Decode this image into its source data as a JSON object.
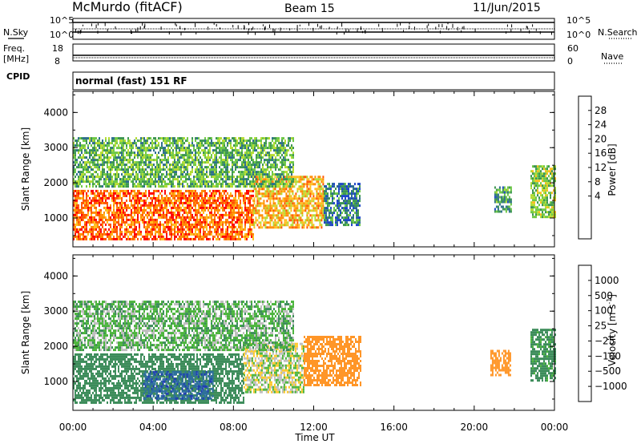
{
  "header": {
    "station": "McMurdo (fitACF)",
    "beam": "Beam 15",
    "date": "11/Jun/2015"
  },
  "labels": {
    "nsky": "N.Sky",
    "nsearch": "N.Search",
    "freq_line1": "Freq.",
    "freq_line2": "[MHz]",
    "nave": "Nave",
    "cpid": "CPID",
    "cpid_value": "normal (fast) 151 RF",
    "noise_ticks_left": [
      "10^5",
      "10^0"
    ],
    "noise_ticks_right": [
      "10^5",
      "10^0"
    ],
    "freq_ticks": [
      "18",
      "8"
    ],
    "nave_ticks": [
      "60",
      "0"
    ]
  },
  "colorbars": {
    "power": {
      "label": "Power [dB]",
      "ticks": [
        "28",
        "24",
        "20",
        "16",
        "12",
        "8",
        "4"
      ],
      "colors": [
        "#ff0000",
        "#ff5500",
        "#ff8c00",
        "#ffbe1e",
        "#b4dc32",
        "#6ec846",
        "#3c9650",
        "#2d6e8c",
        "#1e46c8",
        "#0000ff"
      ]
    },
    "velocity": {
      "label": "Velocity [m s",
      "label_sup": "-1",
      "label_end": "]",
      "ticks": [
        "1000",
        "500",
        "100",
        "25",
        "−25",
        "−100",
        "−500",
        "−1000"
      ],
      "colors": [
        "#1e3cb4",
        "#2d6ea0",
        "#3c8c5a",
        "#4bb43c",
        "#bebebe",
        "#ffc828",
        "#ff9628",
        "#ff6414",
        "#ff2800"
      ]
    }
  },
  "chart_data": [
    {
      "type": "heatmap",
      "title": "Power",
      "xlabel": "",
      "ylabel": "Slant Range [km]",
      "x_ticks": [
        "00:00",
        "04:00",
        "08:00",
        "12:00",
        "16:00",
        "20:00",
        "00:00"
      ],
      "y_ticks": [
        "1000",
        "2000",
        "3000",
        "4000"
      ],
      "xlim": [
        0,
        24
      ],
      "ylim": [
        180,
        4600
      ],
      "colorbar": "Power [dB]",
      "regions": [
        {
          "t0": 0,
          "t1": 9.0,
          "r0": 400,
          "r1": 1800,
          "value": 26
        },
        {
          "t0": 9.0,
          "t1": 12.5,
          "r0": 700,
          "r1": 2200,
          "value": 22
        },
        {
          "t0": 12.5,
          "t1": 14.3,
          "r0": 800,
          "r1": 2000,
          "value": 10
        },
        {
          "t0": 0,
          "t1": 11,
          "r0": 1900,
          "r1": 3300,
          "value": 14
        },
        {
          "t0": 21.0,
          "t1": 21.8,
          "r0": 1200,
          "r1": 1900,
          "value": 12
        },
        {
          "t0": 22.8,
          "t1": 24,
          "r0": 1000,
          "r1": 2500,
          "value": 16
        }
      ]
    },
    {
      "type": "heatmap",
      "title": "Velocity",
      "xlabel": "Time UT",
      "ylabel": "Slant Range [km]",
      "x_ticks": [
        "00:00",
        "04:00",
        "08:00",
        "12:00",
        "16:00",
        "20:00",
        "00:00"
      ],
      "y_ticks": [
        "1000",
        "2000",
        "3000",
        "4000"
      ],
      "xlim": [
        0,
        24
      ],
      "ylim": [
        180,
        4600
      ],
      "colorbar": "Velocity [m s-1]",
      "regions": [
        {
          "t0": 0,
          "t1": 8.5,
          "r0": 400,
          "r1": 1800,
          "value": 200
        },
        {
          "t0": 3.5,
          "t1": 7.0,
          "r0": 500,
          "r1": 1300,
          "value": 800
        },
        {
          "t0": 8.5,
          "t1": 11.5,
          "r0": 700,
          "r1": 2100,
          "value": 0
        },
        {
          "t0": 11.5,
          "t1": 14.3,
          "r0": 900,
          "r1": 2300,
          "value": -200
        },
        {
          "t0": 0,
          "t1": 11,
          "r0": 1900,
          "r1": 3300,
          "value": 60
        },
        {
          "t0": 20.8,
          "t1": 21.8,
          "r0": 1200,
          "r1": 1900,
          "value": -200
        },
        {
          "t0": 22.8,
          "t1": 24,
          "r0": 1000,
          "r1": 2500,
          "value": 150
        }
      ]
    }
  ]
}
